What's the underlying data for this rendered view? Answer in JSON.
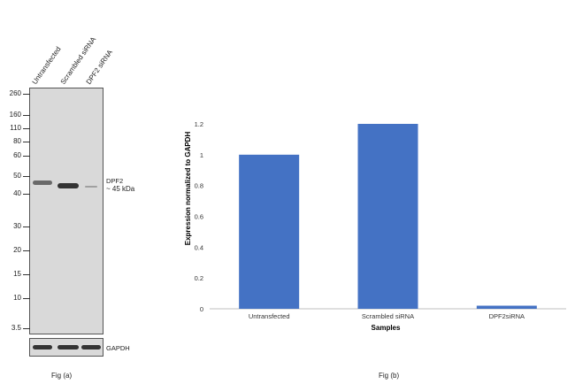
{
  "fig_a": {
    "caption": "Fig (a)",
    "lanes": [
      "Untransfected",
      "Scrambled siRNA",
      "DPF2 siRNA"
    ],
    "mw_markers": [
      "260",
      "160",
      "110",
      "80",
      "60",
      "50",
      "40",
      "30",
      "20",
      "15",
      "10",
      "3.5"
    ],
    "target_label_line1": "DPF2",
    "target_label_line2": "~ 45 kDa",
    "loading_label": "GAPDH"
  },
  "fig_b": {
    "caption": "Fig (b)"
  },
  "chart_data": {
    "type": "bar",
    "categories": [
      "Untransfected",
      "Scrambled siRNA",
      "DPF2siRNA"
    ],
    "values": [
      1.0,
      1.2,
      0.02
    ],
    "xlabel": "Samples",
    "ylabel": "Expression  normalized to GAPDH",
    "ylim": [
      0,
      1.2
    ],
    "yticks": [
      "0",
      "0.2",
      "0.4",
      "0.6",
      "0.8",
      "1",
      "1.2"
    ],
    "bar_color": "#4472C4",
    "grid": false,
    "legend": "none"
  }
}
